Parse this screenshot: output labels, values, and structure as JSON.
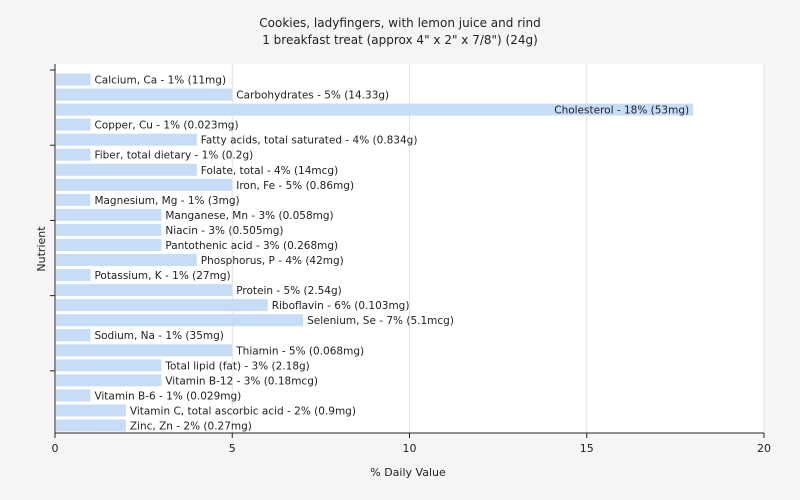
{
  "chart_data": {
    "type": "bar",
    "orientation": "horizontal",
    "title": "Cookies, ladyfingers, with lemon juice and rind",
    "subtitle": "1 breakfast treat (approx 4\" x 2\" x 7/8\") (24g)",
    "xlabel": "% Daily Value",
    "ylabel": "Nutrient",
    "xlim": [
      0,
      20
    ],
    "xticks": [
      0,
      5,
      10,
      15,
      20
    ],
    "grid": true,
    "bar_color": "#c6dcf7",
    "categories": [
      "Calcium, Ca - 1% (11mg)",
      "Carbohydrates - 5% (14.33g)",
      "Cholesterol - 18% (53mg)",
      "Copper, Cu - 1% (0.023mg)",
      "Fatty acids, total saturated - 4% (0.834g)",
      "Fiber, total dietary - 1% (0.2g)",
      "Folate, total - 4% (14mcg)",
      "Iron, Fe - 5% (0.86mg)",
      "Magnesium, Mg - 1% (3mg)",
      "Manganese, Mn - 3% (0.058mg)",
      "Niacin - 3% (0.505mg)",
      "Pantothenic acid - 3% (0.268mg)",
      "Phosphorus, P - 4% (42mg)",
      "Potassium, K - 1% (27mg)",
      "Protein - 5% (2.54g)",
      "Riboflavin - 6% (0.103mg)",
      "Selenium, Se - 7% (5.1mcg)",
      "Sodium, Na - 1% (35mg)",
      "Thiamin - 5% (0.068mg)",
      "Total lipid (fat) - 3% (2.18g)",
      "Vitamin B-12 - 3% (0.18mcg)",
      "Vitamin B-6 - 1% (0.029mg)",
      "Vitamin C, total ascorbic acid - 2% (0.9mg)",
      "Zinc, Zn - 2% (0.27mg)"
    ],
    "values": [
      1,
      5,
      18,
      1,
      4,
      1,
      4,
      5,
      1,
      3,
      3,
      3,
      4,
      1,
      5,
      6,
      7,
      1,
      5,
      3,
      3,
      1,
      2,
      2
    ]
  }
}
